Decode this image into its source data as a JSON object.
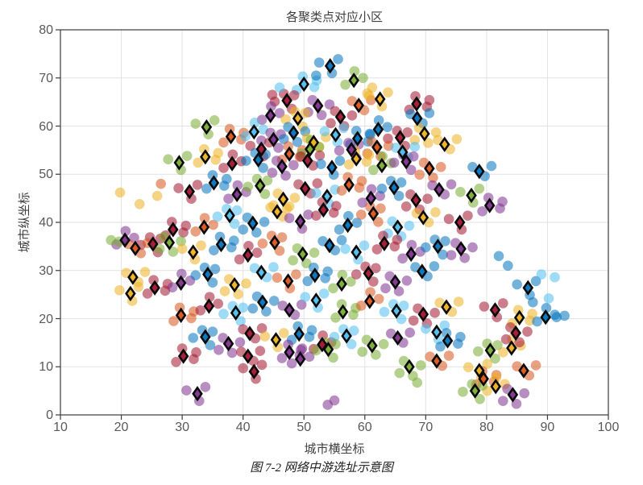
{
  "chart_data": {
    "type": "scatter",
    "title": "各聚类点对应小区",
    "xlabel": "城市横坐标",
    "ylabel": "城市纵坐标",
    "caption": "图 7-2 网络中游选址示意图",
    "xlim": [
      10,
      100
    ],
    "ylim": [
      0,
      80
    ],
    "xticks": [
      10,
      20,
      30,
      40,
      50,
      60,
      70,
      80,
      90,
      100
    ],
    "yticks": [
      0,
      10,
      20,
      30,
      40,
      50,
      60,
      70,
      80
    ],
    "grid": true,
    "legend": "none",
    "palette": [
      "#0072BD",
      "#D95319",
      "#EDB120",
      "#7E2F8E",
      "#77AC30",
      "#4DBEEE",
      "#A2142F"
    ],
    "palette_names": [
      "blue",
      "orange",
      "yellow",
      "purple",
      "green",
      "cyan",
      "dark-red"
    ],
    "marker_style": {
      "dot_opacity": 0.55,
      "diamond_edge": "#0a0a0a",
      "diamond_fill_opacity": 0.95
    },
    "clusters": [
      [
        54.3,
        72.5,
        0
      ],
      [
        50,
        68.7,
        5
      ],
      [
        58.2,
        69.5,
        4
      ],
      [
        47.2,
        65.3,
        6
      ],
      [
        52.3,
        64.2,
        3
      ],
      [
        59,
        64.3,
        1
      ],
      [
        62.5,
        65.6,
        2
      ],
      [
        68.5,
        64.6,
        6
      ],
      [
        44.5,
        62.2,
        3
      ],
      [
        49,
        61.6,
        2
      ],
      [
        56,
        61.9,
        6
      ],
      [
        68.6,
        61.6,
        0
      ],
      [
        34,
        59.8,
        4
      ],
      [
        38,
        57.8,
        1
      ],
      [
        41.8,
        58.8,
        5
      ],
      [
        45,
        57.2,
        3
      ],
      [
        48.3,
        58.6,
        0
      ],
      [
        51.6,
        56.6,
        2
      ],
      [
        55.2,
        58.2,
        5
      ],
      [
        58.8,
        57.4,
        0
      ],
      [
        62.2,
        59.3,
        0
      ],
      [
        65.8,
        57.6,
        6
      ],
      [
        69.8,
        58.4,
        2
      ],
      [
        73.1,
        56.2,
        2
      ],
      [
        43,
        55.2,
        6
      ],
      [
        47.6,
        54.2,
        1
      ],
      [
        51,
        55.2,
        4
      ],
      [
        57.8,
        55.1,
        3
      ],
      [
        62,
        55.6,
        1
      ],
      [
        66.2,
        54.6,
        5
      ],
      [
        29.5,
        52.4,
        4
      ],
      [
        33.8,
        53.6,
        2
      ],
      [
        38.2,
        52.2,
        6
      ],
      [
        42.5,
        53,
        0
      ],
      [
        46.4,
        51.6,
        3
      ],
      [
        50.6,
        52.8,
        6
      ],
      [
        54.6,
        51.4,
        0
      ],
      [
        58.6,
        53.2,
        2
      ],
      [
        62.8,
        51.8,
        4
      ],
      [
        66.8,
        52.6,
        3
      ],
      [
        70.6,
        51.2,
        1
      ],
      [
        78.8,
        50.6,
        0
      ],
      [
        31.2,
        46.4,
        6
      ],
      [
        35.2,
        48.2,
        0
      ],
      [
        39,
        45.8,
        3
      ],
      [
        42.8,
        47.6,
        4
      ],
      [
        46.6,
        44.8,
        2
      ],
      [
        50.2,
        47,
        6
      ],
      [
        53.8,
        45.4,
        5
      ],
      [
        57.4,
        47.8,
        1
      ],
      [
        61,
        45,
        3
      ],
      [
        64.8,
        47.2,
        0
      ],
      [
        68.4,
        44.6,
        6
      ],
      [
        72.2,
        46.8,
        3
      ],
      [
        77.5,
        45.6,
        4
      ],
      [
        28.5,
        38.5,
        6
      ],
      [
        33.6,
        39,
        1
      ],
      [
        37.8,
        41.4,
        5
      ],
      [
        41.6,
        39.8,
        0
      ],
      [
        45.6,
        42.2,
        2
      ],
      [
        49.4,
        40.2,
        3
      ],
      [
        53.2,
        42.6,
        6
      ],
      [
        57.2,
        39.4,
        0
      ],
      [
        61.4,
        41.8,
        1
      ],
      [
        65.4,
        39,
        5
      ],
      [
        69.6,
        41,
        2
      ],
      [
        75.6,
        40,
        6
      ],
      [
        80.5,
        43.5,
        3
      ],
      [
        20.6,
        36.3,
        3
      ],
      [
        25.2,
        35.5,
        6
      ],
      [
        27.9,
        35.8,
        4
      ],
      [
        22.3,
        34.6,
        1
      ],
      [
        31.8,
        33.8,
        2
      ],
      [
        36.4,
        35.4,
        0
      ],
      [
        40.8,
        33.2,
        6
      ],
      [
        45.2,
        35.8,
        1
      ],
      [
        49.8,
        33.4,
        4
      ],
      [
        54.2,
        35.2,
        0
      ],
      [
        58.6,
        33.8,
        5
      ],
      [
        63.2,
        35.6,
        6
      ],
      [
        67.6,
        33.4,
        3
      ],
      [
        72,
        35,
        0
      ],
      [
        75.8,
        34.5,
        3
      ],
      [
        21.9,
        28.6,
        2
      ],
      [
        21.5,
        25.2,
        2
      ],
      [
        25.5,
        26.4,
        6
      ],
      [
        29.8,
        27.4,
        3
      ],
      [
        34.2,
        29.2,
        0
      ],
      [
        38.6,
        27,
        2
      ],
      [
        43,
        29.6,
        5
      ],
      [
        47.4,
        27.8,
        1
      ],
      [
        51.8,
        29,
        0
      ],
      [
        56.2,
        27.2,
        4
      ],
      [
        60.6,
        29.4,
        6
      ],
      [
        65,
        27.6,
        3
      ],
      [
        69.4,
        29.8,
        0
      ],
      [
        86.8,
        26.4,
        0
      ],
      [
        29.8,
        20.7,
        1
      ],
      [
        34.4,
        22.6,
        6
      ],
      [
        38.8,
        21.2,
        5
      ],
      [
        43.2,
        23.4,
        0
      ],
      [
        47.6,
        21.8,
        3
      ],
      [
        52,
        23.8,
        5
      ],
      [
        56.4,
        21.4,
        4
      ],
      [
        60.8,
        23.6,
        1
      ],
      [
        65.2,
        21.6,
        5
      ],
      [
        69.6,
        20.9,
        6
      ],
      [
        73.4,
        22.4,
        2
      ],
      [
        81.4,
        21.8,
        6
      ],
      [
        85.4,
        20.2,
        2
      ],
      [
        89.7,
        20.3,
        0
      ],
      [
        33.8,
        16.2,
        0
      ],
      [
        37.6,
        14.8,
        3
      ],
      [
        41.1,
        16.9,
        6
      ],
      [
        45.4,
        15.6,
        2
      ],
      [
        49.2,
        16.8,
        0
      ],
      [
        53,
        14.6,
        6
      ],
      [
        57,
        16.4,
        5
      ],
      [
        61.2,
        14.4,
        4
      ],
      [
        65.4,
        16,
        3
      ],
      [
        71.8,
        17.2,
        5
      ],
      [
        73.6,
        15.4,
        0
      ],
      [
        84.1,
        13.9,
        2
      ],
      [
        80.6,
        13.4,
        4
      ],
      [
        84.8,
        17,
        6
      ],
      [
        40.8,
        12.2,
        6
      ],
      [
        41.8,
        9,
        6
      ],
      [
        47.6,
        13,
        3
      ],
      [
        49.4,
        11.6,
        3
      ],
      [
        54,
        13.6,
        4
      ],
      [
        67.3,
        10,
        4
      ],
      [
        71.8,
        11.2,
        1
      ],
      [
        78.8,
        9.2,
        2
      ],
      [
        79.5,
        7.5,
        1
      ],
      [
        81.5,
        5.9,
        2
      ],
      [
        78.1,
        5,
        4
      ],
      [
        84.3,
        4.2,
        3
      ],
      [
        86.1,
        9.2,
        1
      ],
      [
        32.5,
        4.4,
        3
      ],
      [
        30.2,
        12.2,
        6
      ]
    ],
    "dot_offset_patterns": [
      [
        -1.8,
        0.7,
        1.3,
        1.4,
        0.3,
        -1.5
      ],
      [
        1.7,
        -0.6,
        -1.2,
        -1.2,
        -0.2,
        1.6,
        2.1,
        0.8
      ],
      [
        -1.4,
        -0.9,
        1.5,
        0.5,
        0.1,
        1.9
      ],
      [
        0.8,
        -1.7,
        -2,
        -0.2,
        1.2,
        1.1,
        -0.5,
        1.4
      ],
      [
        -0.9,
        1.2,
        1.9,
        0.3,
        -1.6,
        -1.3,
        0.6,
        -1.9
      ],
      [
        2,
        1.1,
        -1.1,
        0.9,
        0.9,
        -1
      ]
    ],
    "extra_dots": [
      [
        18.3,
        36.3,
        4
      ],
      [
        19.6,
        36,
        4
      ],
      [
        19.8,
        46.2,
        2
      ],
      [
        25.9,
        45.5,
        2
      ],
      [
        23,
        43.8,
        2
      ],
      [
        26.5,
        48,
        1
      ],
      [
        53.9,
        2.1,
        3
      ],
      [
        55,
        3,
        3
      ],
      [
        68.6,
        6.7,
        4
      ],
      [
        91.5,
        20.3,
        0
      ],
      [
        92.8,
        20.6,
        0
      ],
      [
        90.2,
        24.2,
        5
      ],
      [
        91.2,
        28.6,
        5
      ],
      [
        89,
        29.2,
        5
      ],
      [
        87.6,
        23.4,
        0
      ],
      [
        60.4,
        66.8,
        2
      ],
      [
        61.2,
        68,
        2
      ],
      [
        46,
        68,
        5
      ],
      [
        52,
        70.5,
        0
      ],
      [
        44.8,
        66.5,
        6
      ],
      [
        83.5,
        31,
        0
      ],
      [
        82,
        33,
        0
      ]
    ],
    "colors": {
      "axis_line": "#3b3b3b",
      "grid_line": "#e2e2e2",
      "tick_text": "#585858",
      "label_text": "#3f3f3f",
      "background": "#ffffff"
    }
  }
}
